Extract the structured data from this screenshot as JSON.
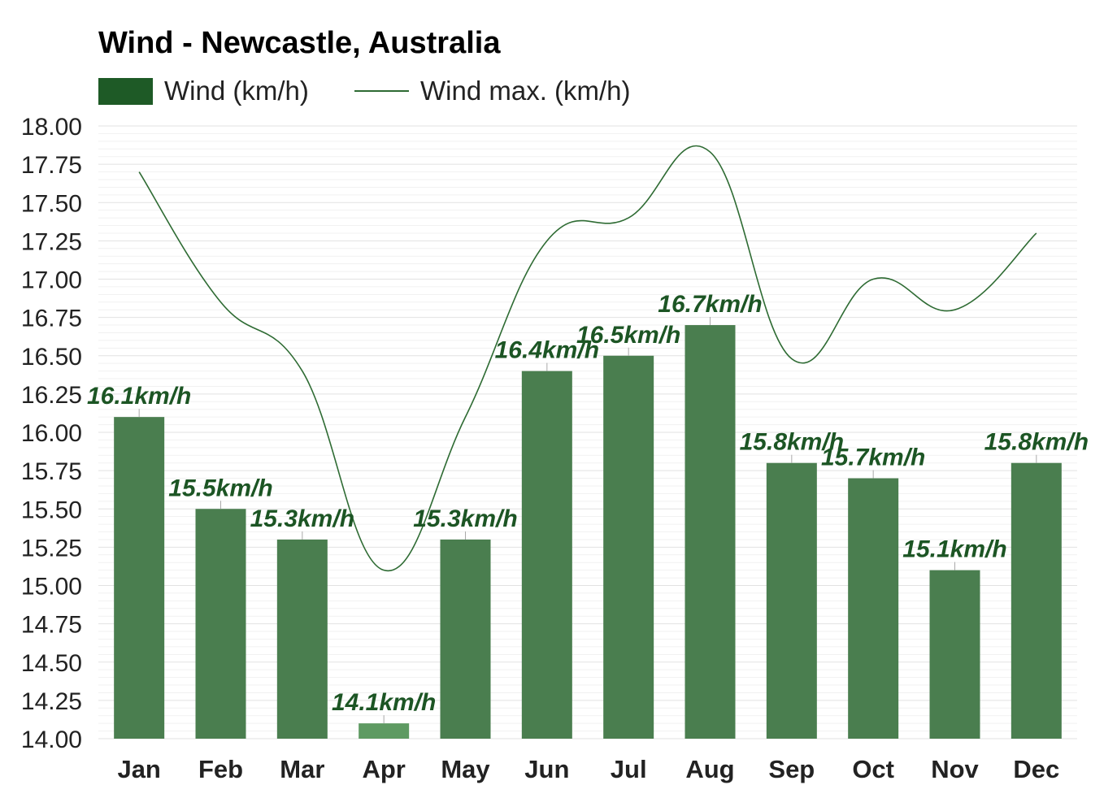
{
  "chart_data": {
    "type": "bar",
    "title": "Wind - Newcastle, Australia",
    "categories": [
      "Jan",
      "Feb",
      "Mar",
      "Apr",
      "May",
      "Jun",
      "Jul",
      "Aug",
      "Sep",
      "Oct",
      "Nov",
      "Dec"
    ],
    "series": [
      {
        "name": "Wind (km/h)",
        "type": "bar",
        "values": [
          16.1,
          15.5,
          15.3,
          14.1,
          15.3,
          16.4,
          16.5,
          16.7,
          15.8,
          15.7,
          15.1,
          15.8
        ],
        "labels": [
          "16.1km/h",
          "15.5km/h",
          "15.3km/h",
          "14.1km/h",
          "15.3km/h",
          "16.4km/h",
          "16.5km/h",
          "16.7km/h",
          "15.8km/h",
          "15.7km/h",
          "15.1km/h",
          "15.8km/h"
        ],
        "highlight_index": 3
      },
      {
        "name": "Wind max. (km/h)",
        "type": "line",
        "values": [
          17.7,
          16.85,
          16.4,
          15.1,
          16.1,
          17.25,
          17.4,
          17.83,
          16.48,
          17.0,
          16.8,
          17.3
        ]
      }
    ],
    "ylim": [
      14.0,
      18.0
    ],
    "yticks": [
      "14.00",
      "14.25",
      "14.50",
      "14.75",
      "15.00",
      "15.25",
      "15.50",
      "15.75",
      "16.00",
      "16.25",
      "16.50",
      "16.75",
      "17.00",
      "17.25",
      "17.50",
      "17.75",
      "18.00"
    ],
    "xlabel": "",
    "ylabel": "",
    "grid": true,
    "legend": "top-left",
    "colors": {
      "bar": "#4a7e4f",
      "bar_highlight": "#5e9a62",
      "legend_swatch": "#1e5a26",
      "line": "#2e6b33",
      "label": "#1c5524",
      "grid": "#e6e6e6"
    }
  }
}
